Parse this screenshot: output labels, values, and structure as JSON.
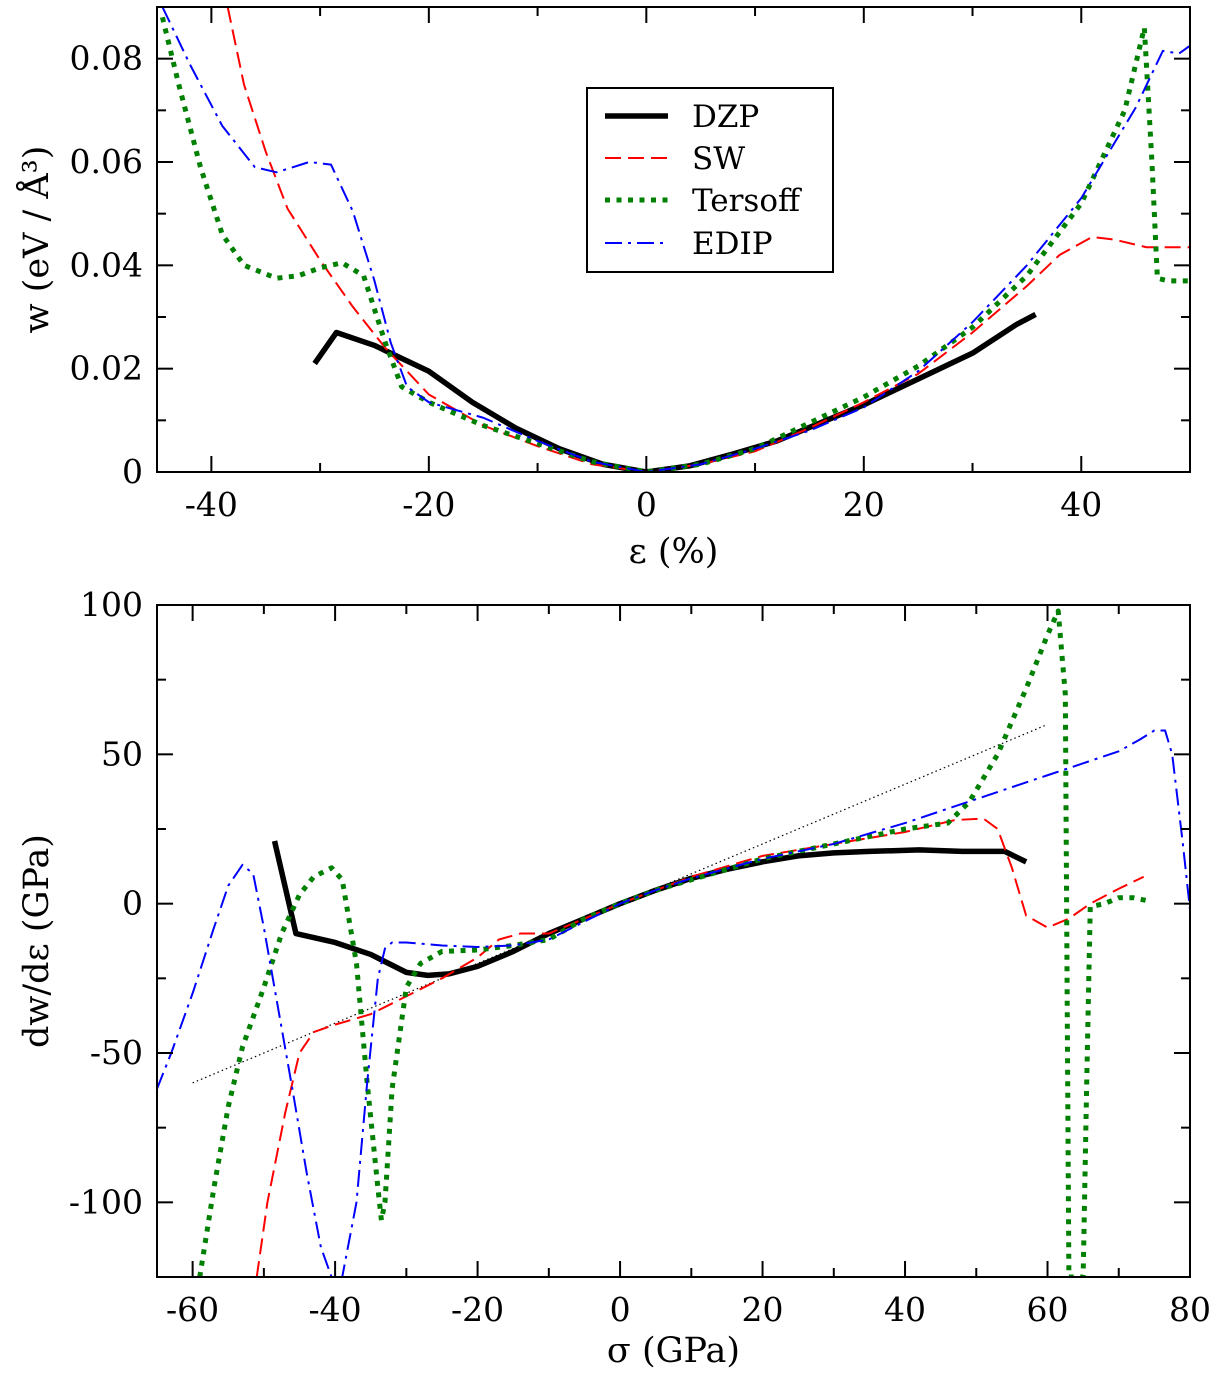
{
  "chart_data": [
    {
      "type": "line",
      "xlabel": "ε  (%)",
      "ylabel": "w (eV / Å³)",
      "xlim": [
        -45,
        50
      ],
      "ylim": [
        0,
        0.09
      ],
      "x_ticks": [
        -40,
        -20,
        0,
        20,
        40
      ],
      "x_tick_labels": [
        "-40",
        "-20",
        "0",
        "20",
        "40"
      ],
      "y_ticks": [
        0,
        0.02,
        0.04,
        0.06,
        0.08
      ],
      "y_tick_labels": [
        "0",
        "0.02",
        "0.04",
        "0.06",
        "0.08"
      ],
      "grid": false,
      "legend": {
        "position": "top-center",
        "entries": [
          "DZP",
          "SW",
          "Tersoff",
          "EDIP"
        ]
      },
      "series": [
        {
          "name": "DZP",
          "color": "#000000",
          "style": "solid-thick",
          "x": [
            -30.5,
            -28.5,
            -25,
            -20,
            -16,
            -12,
            -8,
            -4,
            0,
            4,
            8,
            12,
            16,
            20,
            25,
            30,
            34,
            35.8
          ],
          "y": [
            0.021,
            0.027,
            0.0245,
            0.0195,
            0.0135,
            0.0085,
            0.0045,
            0.0015,
            0,
            0.0012,
            0.0035,
            0.006,
            0.0095,
            0.013,
            0.018,
            0.023,
            0.0285,
            0.0305
          ]
        },
        {
          "name": "SW",
          "color": "#ff0000",
          "style": "dashed",
          "x": [
            -38.5,
            -37,
            -35,
            -33,
            -30,
            -27,
            -24,
            -20,
            -15,
            -10,
            -5,
            0,
            5,
            10,
            15,
            20,
            25,
            30,
            35,
            38,
            41,
            43,
            46,
            50
          ],
          "y": [
            0.09,
            0.075,
            0.062,
            0.051,
            0.041,
            0.032,
            0.024,
            0.015,
            0.009,
            0.005,
            0.0015,
            0,
            0.0015,
            0.004,
            0.0085,
            0.0135,
            0.019,
            0.027,
            0.036,
            0.042,
            0.0455,
            0.045,
            0.0435,
            0.0435
          ]
        },
        {
          "name": "Tersoff",
          "color": "#008000",
          "style": "dotted",
          "x": [
            -44.5,
            -43,
            -41,
            -39,
            -37,
            -34,
            -32,
            -30,
            -28,
            -26,
            -24,
            -22.5,
            -20,
            -15,
            -10,
            -5,
            0,
            5,
            10,
            15,
            20,
            25,
            30,
            35,
            40,
            44,
            45.8,
            46.5,
            47,
            48,
            50
          ],
          "y": [
            0.088,
            0.075,
            0.059,
            0.046,
            0.04,
            0.0375,
            0.038,
            0.0395,
            0.0405,
            0.038,
            0.025,
            0.0165,
            0.0135,
            0.009,
            0.0055,
            0.002,
            0,
            0.0015,
            0.0045,
            0.0095,
            0.0145,
            0.0205,
            0.028,
            0.038,
            0.052,
            0.07,
            0.086,
            0.06,
            0.0375,
            0.037,
            0.037
          ]
        },
        {
          "name": "EDIP",
          "color": "#0000ff",
          "style": "dash-dot",
          "x": [
            -44.5,
            -42,
            -39,
            -36,
            -34,
            -31,
            -29,
            -27,
            -25,
            -23.5,
            -22,
            -20,
            -15,
            -10,
            -5,
            0,
            5,
            10,
            15,
            20,
            25,
            30,
            35,
            40,
            45,
            47.5,
            49,
            50
          ],
          "y": [
            0.09,
            0.079,
            0.067,
            0.059,
            0.058,
            0.06,
            0.0595,
            0.0505,
            0.037,
            0.025,
            0.0165,
            0.0135,
            0.0105,
            0.006,
            0.002,
            0,
            0.0015,
            0.0045,
            0.008,
            0.0125,
            0.0195,
            0.029,
            0.04,
            0.053,
            0.0705,
            0.0815,
            0.081,
            0.0825
          ]
        }
      ]
    },
    {
      "type": "line",
      "xlabel": "σ (GPa)",
      "ylabel": "dw/dε (GPa)",
      "xlim": [
        -65,
        80
      ],
      "ylim": [
        -125,
        100
      ],
      "x_ticks": [
        -60,
        -40,
        -20,
        0,
        20,
        40,
        60,
        80
      ],
      "x_tick_labels": [
        "-60",
        "-40",
        "-20",
        "0",
        "20",
        "40",
        "60",
        "80"
      ],
      "y_ticks": [
        -100,
        -50,
        0,
        50,
        100
      ],
      "y_tick_labels": [
        "-100",
        "-50",
        "0",
        "50",
        "100"
      ],
      "grid": false,
      "series": [
        {
          "color": "#000000",
          "style": "dotted-thin",
          "x": [
            -60,
            60
          ],
          "y": [
            -60,
            60
          ]
        },
        {
          "name": "DZP",
          "color": "#000000",
          "style": "solid-thick",
          "x": [
            -48.5,
            -45.5,
            -40,
            -35,
            -30,
            -27,
            -24,
            -20,
            -15,
            -10,
            -5,
            0,
            5,
            10,
            15,
            20,
            25,
            30,
            35,
            42,
            48,
            54,
            57
          ],
          "y": [
            21,
            -10,
            -13,
            -17,
            -23,
            -24,
            -23.5,
            -21,
            -16,
            -10,
            -5,
            0,
            4.5,
            8.5,
            11.5,
            14,
            16,
            17,
            17.5,
            18,
            17.5,
            17.5,
            14
          ]
        },
        {
          "name": "SW",
          "color": "#ff0000",
          "style": "dashed",
          "x": [
            -51,
            -49.5,
            -47,
            -45,
            -43,
            -40,
            -35,
            -30,
            -25,
            -20,
            -17,
            -14,
            -10,
            -5,
            0,
            5,
            10,
            15,
            20,
            30,
            40,
            47,
            51,
            53,
            55,
            57,
            60,
            63,
            66,
            70,
            73.5
          ],
          "y": [
            -125,
            -100,
            -70,
            -50,
            -43,
            -40.5,
            -37,
            -31,
            -25,
            -18,
            -12,
            -10,
            -10,
            -5,
            0,
            4.5,
            9,
            12.5,
            16,
            20,
            24,
            28,
            28.5,
            25,
            12,
            -4,
            -8,
            -5,
            0,
            5,
            9
          ]
        },
        {
          "name": "Tersoff",
          "color": "#008000",
          "style": "dotted",
          "x": [
            -59,
            -57,
            -55,
            -53,
            -50,
            -47.5,
            -45,
            -43,
            -40.5,
            -39,
            -37,
            -35.5,
            -34,
            -33.5,
            -33,
            -32,
            -30,
            -28,
            -25,
            -20,
            -15,
            -10,
            -5,
            0,
            5,
            10,
            20,
            30,
            40,
            46,
            49,
            53,
            57,
            60,
            61.5,
            62.5,
            63,
            64,
            65,
            65.5,
            66,
            68,
            70,
            72,
            74
          ],
          "y": [
            -125,
            -95,
            -68,
            -48,
            -28,
            -10,
            3,
            9,
            12,
            8,
            -20,
            -60,
            -95,
            -106,
            -100,
            -62,
            -28,
            -20,
            -16,
            -15.5,
            -14,
            -12,
            -5,
            0,
            4.5,
            8,
            15,
            20,
            25,
            27,
            34,
            50,
            72,
            90,
            98,
            70,
            -125,
            -125,
            -125,
            -60,
            -1,
            0,
            2,
            2,
            1
          ]
        },
        {
          "name": "EDIP",
          "color": "#0000ff",
          "style": "dash-dot",
          "x": [
            -65,
            -63,
            -60,
            -57,
            -55,
            -53,
            -51.5,
            -50,
            -48,
            -46,
            -44,
            -42,
            -40.5,
            -39,
            -37,
            -35.5,
            -34,
            -33,
            -32,
            -30,
            -25,
            -20,
            -15,
            -10,
            -5,
            0,
            5,
            10,
            20,
            30,
            40,
            45,
            50,
            55,
            60,
            65,
            70,
            73,
            75,
            76.5,
            77.5,
            79,
            80
          ],
          "y": [
            -62,
            -50,
            -30,
            -8,
            6,
            13,
            10,
            -8,
            -35,
            -62,
            -90,
            -115,
            -125,
            -125,
            -100,
            -60,
            -25,
            -15,
            -13,
            -13,
            -14,
            -14.5,
            -14,
            -12,
            -6,
            0,
            4.5,
            8.5,
            15,
            20,
            27,
            31,
            35,
            39,
            43,
            47,
            51,
            55,
            58,
            58,
            50,
            20,
            -2
          ]
        }
      ]
    }
  ]
}
